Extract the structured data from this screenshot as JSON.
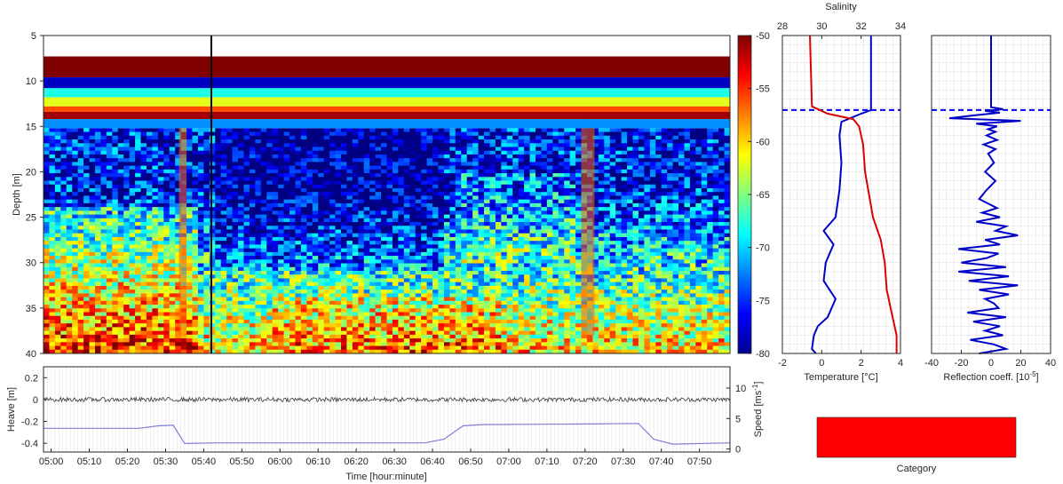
{
  "chart_data": [
    {
      "id": "echogram",
      "type": "heatmap",
      "ylabel": "Depth [m]",
      "y_ticks": [
        "5",
        "10",
        "15",
        "20",
        "25",
        "30",
        "35",
        "40"
      ],
      "ylim": [
        5,
        40
      ],
      "x_range_minutes": [
        0,
        180
      ],
      "colorbar": {
        "ticks": [
          "-50",
          "-55",
          "-60",
          "-65",
          "-70",
          "-75",
          "-80"
        ],
        "range": [
          -80,
          -50
        ],
        "colormap": "jet"
      },
      "surface_bands": [
        {
          "depth_from": 5,
          "depth_to": 7.3,
          "level": "none"
        },
        {
          "depth_from": 7.3,
          "depth_to": 9.6,
          "level": -50
        },
        {
          "depth_from": 9.6,
          "depth_to": 10.8,
          "level": -78
        },
        {
          "depth_from": 10.8,
          "depth_to": 11.8,
          "level": -68
        },
        {
          "depth_from": 11.8,
          "depth_to": 12.8,
          "level": -62
        },
        {
          "depth_from": 12.8,
          "depth_to": 13.4,
          "level": -56
        },
        {
          "depth_from": 13.4,
          "depth_to": 14.2,
          "level": -51
        },
        {
          "depth_from": 14.2,
          "depth_to": 15.2,
          "level": -72
        }
      ],
      "marker_time_minutes": 44
    },
    {
      "id": "heave_speed",
      "type": "line",
      "xlabel": "Time [hour:minute]",
      "x_ticks": [
        "05:00",
        "05:10",
        "05:20",
        "05:30",
        "05:40",
        "05:50",
        "06:00",
        "06:10",
        "06:20",
        "06:30",
        "06:40",
        "06:50",
        "07:00",
        "07:10",
        "07:20",
        "07:30",
        "07:40",
        "07:50"
      ],
      "ylabel_left": "Heave [m]",
      "left_ticks": [
        "0.2",
        "0",
        "-0.2",
        "-0.4"
      ],
      "ylim_left": [
        -0.48,
        0.3
      ],
      "ylabel_right": "Speed [ms-1]",
      "right_ticks": [
        "10",
        "5",
        "0"
      ],
      "ylim_right": [
        -0.5,
        13.5
      ],
      "series": [
        {
          "id": "heave",
          "color": "#3a3a3a",
          "mean": 0.0,
          "noise": 0.02
        },
        {
          "id": "speed",
          "color": "#7f7fd5",
          "x": [
            0,
            25,
            30,
            34,
            37,
            45,
            100,
            105,
            110,
            115,
            140,
            156,
            160,
            165,
            180
          ],
          "y": [
            3.4,
            3.4,
            3.8,
            3.9,
            0.9,
            1.0,
            1.0,
            1.6,
            3.8,
            4.0,
            4.1,
            4.2,
            1.6,
            0.8,
            1.0
          ]
        }
      ]
    },
    {
      "id": "ctd_profile",
      "type": "line",
      "xlabel": "Temperature [°C]",
      "x_ticks": [
        "-2",
        "0",
        "2",
        "4"
      ],
      "xlim": [
        -2,
        4
      ],
      "top_label": "Salinity",
      "top_ticks": [
        "28",
        "30",
        "32",
        "34"
      ],
      "top_lim": [
        28,
        34
      ],
      "series": [
        {
          "id": "temperature",
          "color": "#0000c8",
          "axis": "bottom",
          "depth": [
            5,
            13.2,
            13.6,
            14.5,
            16,
            19,
            22,
            25,
            26.5,
            28,
            30,
            32,
            34,
            36,
            37,
            38,
            39.5,
            40
          ],
          "values": [
            2.5,
            2.5,
            2.0,
            1.0,
            0.9,
            1.0,
            0.9,
            0.7,
            0.1,
            0.6,
            0.2,
            0.1,
            0.7,
            0.3,
            -0.2,
            -0.4,
            -0.5,
            -0.3
          ]
        },
        {
          "id": "salinity",
          "color": "#dc0000",
          "axis": "top",
          "depth": [
            5,
            12.8,
            13.6,
            14.2,
            15,
            17,
            20,
            25,
            27.5,
            30,
            33,
            36,
            38,
            40
          ],
          "values": [
            29.4,
            29.5,
            30.3,
            31.6,
            31.9,
            32.1,
            32.2,
            32.6,
            33.0,
            33.2,
            33.3,
            33.6,
            33.8,
            33.8
          ]
        }
      ],
      "dashed_line_depth": 13.2
    },
    {
      "id": "reflection",
      "type": "line",
      "xlabel": "Reflection coeff. [10-5]",
      "x_ticks": [
        "-40",
        "-20",
        "0",
        "20",
        "40"
      ],
      "xlim": [
        -40,
        40
      ],
      "series": [
        {
          "id": "reflection",
          "color": "#0000c8",
          "depth": [
            5,
            12.9,
            13.1,
            13.3,
            13.5,
            13.8,
            14.1,
            14.4,
            14.7,
            15.0,
            15.3,
            15.6,
            16.0,
            16.5,
            17.0,
            17.5,
            18.0,
            19.0,
            20.0,
            21.0,
            22.0,
            23.0,
            24.0,
            24.5,
            25.0,
            25.5,
            26.0,
            26.5,
            27.0,
            27.5,
            28.0,
            28.5,
            29.0,
            29.5,
            30.0,
            30.5,
            31.0,
            31.5,
            32.0,
            32.5,
            33.0,
            33.5,
            34.0,
            34.5,
            35.0,
            35.5,
            36.0,
            36.5,
            37.0,
            37.5,
            38.0,
            38.5,
            39.0,
            39.5,
            40.0
          ],
          "values": [
            0,
            0,
            8,
            -4,
            6,
            -12,
            -28,
            20,
            -10,
            4,
            -2,
            3,
            -3,
            4,
            -5,
            3,
            -2,
            2,
            -4,
            3,
            -3,
            -8,
            4,
            -6,
            6,
            -10,
            10,
            3,
            18,
            -4,
            6,
            -22,
            5,
            -3,
            -20,
            10,
            -22,
            12,
            -15,
            18,
            -8,
            12,
            -4,
            2,
            5,
            -16,
            10,
            -12,
            6,
            -4,
            8,
            -14,
            2,
            10,
            -8
          ]
        }
      ],
      "dashed_line_depth": 13.2
    }
  ],
  "category": {
    "label": "Category",
    "color": "#ff0000"
  }
}
